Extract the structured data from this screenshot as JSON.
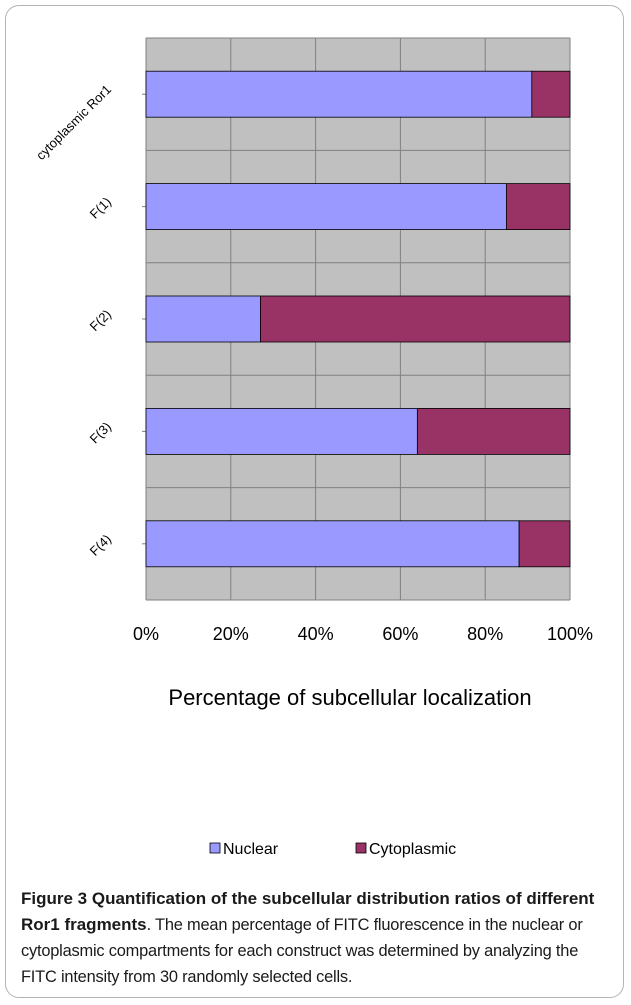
{
  "chart_data": {
    "type": "bar",
    "orientation": "horizontal",
    "stacked": true,
    "normalized": true,
    "categories": [
      "cytoplasmic Ror1",
      "F(1)",
      "F(2)",
      "F(3)",
      "F(4)"
    ],
    "series": [
      {
        "name": "Nuclear",
        "color": "#9999ff",
        "values": [
          91,
          85,
          27,
          64,
          88
        ]
      },
      {
        "name": "Cytoplasmic",
        "color": "#993366",
        "values": [
          9,
          15,
          73,
          36,
          12
        ]
      }
    ],
    "xlabel": "Percentage of subcellular localization",
    "xlim": [
      0,
      100
    ],
    "xticks": [
      "0%",
      "20%",
      "40%",
      "60%",
      "80%",
      "100%"
    ],
    "grid": true,
    "plot_background": "#c0c0c0",
    "legend_position": "bottom"
  },
  "caption": {
    "label": "Figure 3",
    "title": "Quantification of the subcellular distribution ratios of different Ror1 fragments",
    "text": ". The mean percentage of FITC fluorescence in the nuclear or cytoplasmic compartments for each construct was determined by analyzing the FITC intensity from 30 randomly selected cells."
  }
}
